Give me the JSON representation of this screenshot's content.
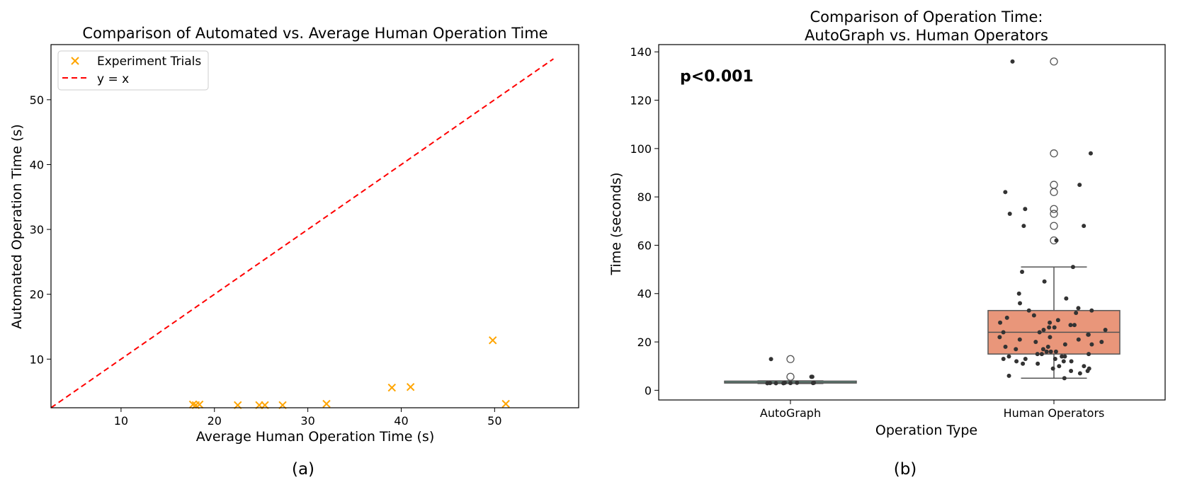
{
  "chart_data": [
    {
      "type": "scatter",
      "panel_label": "(a)",
      "title": "Comparison of Automated vs. Average Human Operation Time",
      "xlabel": "Average Human Operation Time (s)",
      "ylabel": "Automated Operation Time (s)",
      "xlim": [
        2.5,
        59
      ],
      "ylim": [
        2.5,
        58.5
      ],
      "xticks": [
        10,
        20,
        30,
        40,
        50
      ],
      "yticks": [
        10,
        20,
        30,
        40,
        50
      ],
      "grid": false,
      "legend_position": "top-left",
      "legend": [
        "Experiment Trials",
        "y = x"
      ],
      "series": [
        {
          "name": "Experiment Trials",
          "marker": "x",
          "color": "#ffa500",
          "points": [
            [
              17.7,
              3.0
            ],
            [
              18.0,
              2.9
            ],
            [
              18.4,
              3.0
            ],
            [
              22.5,
              2.9
            ],
            [
              24.8,
              2.9
            ],
            [
              25.4,
              2.9
            ],
            [
              27.3,
              2.9
            ],
            [
              32.0,
              3.1
            ],
            [
              39.0,
              5.6
            ],
            [
              41.0,
              5.7
            ],
            [
              49.8,
              12.9
            ],
            [
              51.2,
              3.1
            ]
          ]
        },
        {
          "name": "y = x",
          "style": "dashed",
          "color": "#ff0000",
          "points": [
            [
              2.5,
              2.5
            ],
            [
              56.3,
              56.3
            ]
          ]
        }
      ]
    },
    {
      "type": "box",
      "panel_label": "(b)",
      "title": "Comparison of Operation Time:",
      "title_line2": "AutoGraph vs. Human Operators",
      "xlabel": "Operation Type",
      "ylabel": "Time (seconds)",
      "ylim": [
        -4,
        143
      ],
      "yticks": [
        0,
        20,
        40,
        60,
        80,
        100,
        120,
        140
      ],
      "annotation": "p<0.001",
      "grid": false,
      "categories": [
        "AutoGraph",
        "Human Operators"
      ],
      "boxes": [
        {
          "category": "AutoGraph",
          "color": "#66c2a5",
          "whisker_low": 2.8,
          "q1": 3.0,
          "median": 3.2,
          "q3": 3.8,
          "whisker_high": 3.9,
          "outliers": [
            5.6,
            12.9
          ],
          "points": [
            5.6,
            3.0,
            2.9,
            3.1,
            5.6,
            12.9,
            2.9,
            3.0,
            3.1,
            2.9,
            3.0,
            3.1
          ]
        },
        {
          "category": "Human Operators",
          "color": "#e9967a",
          "whisker_low": 5,
          "q1": 15,
          "median": 24,
          "q3": 33,
          "whisker_high": 51,
          "outliers": [
            136,
            98,
            85,
            82,
            75,
            73,
            68,
            62
          ],
          "points": [
            136,
            98,
            85,
            82,
            75,
            73,
            68,
            68,
            62,
            51,
            49,
            45,
            40,
            38,
            36,
            34,
            33,
            33,
            32,
            31,
            30,
            29,
            28,
            28,
            27,
            27,
            26,
            26,
            25,
            25,
            24,
            24,
            23,
            23,
            22,
            22,
            21,
            21,
            20,
            20,
            19,
            19,
            18,
            18,
            17,
            17,
            16,
            16,
            16,
            15,
            15,
            15,
            14,
            14,
            14,
            13,
            13,
            13,
            12,
            12,
            12,
            11,
            11,
            10,
            10,
            9,
            9,
            8,
            8,
            7,
            6,
            5
          ]
        }
      ]
    }
  ]
}
